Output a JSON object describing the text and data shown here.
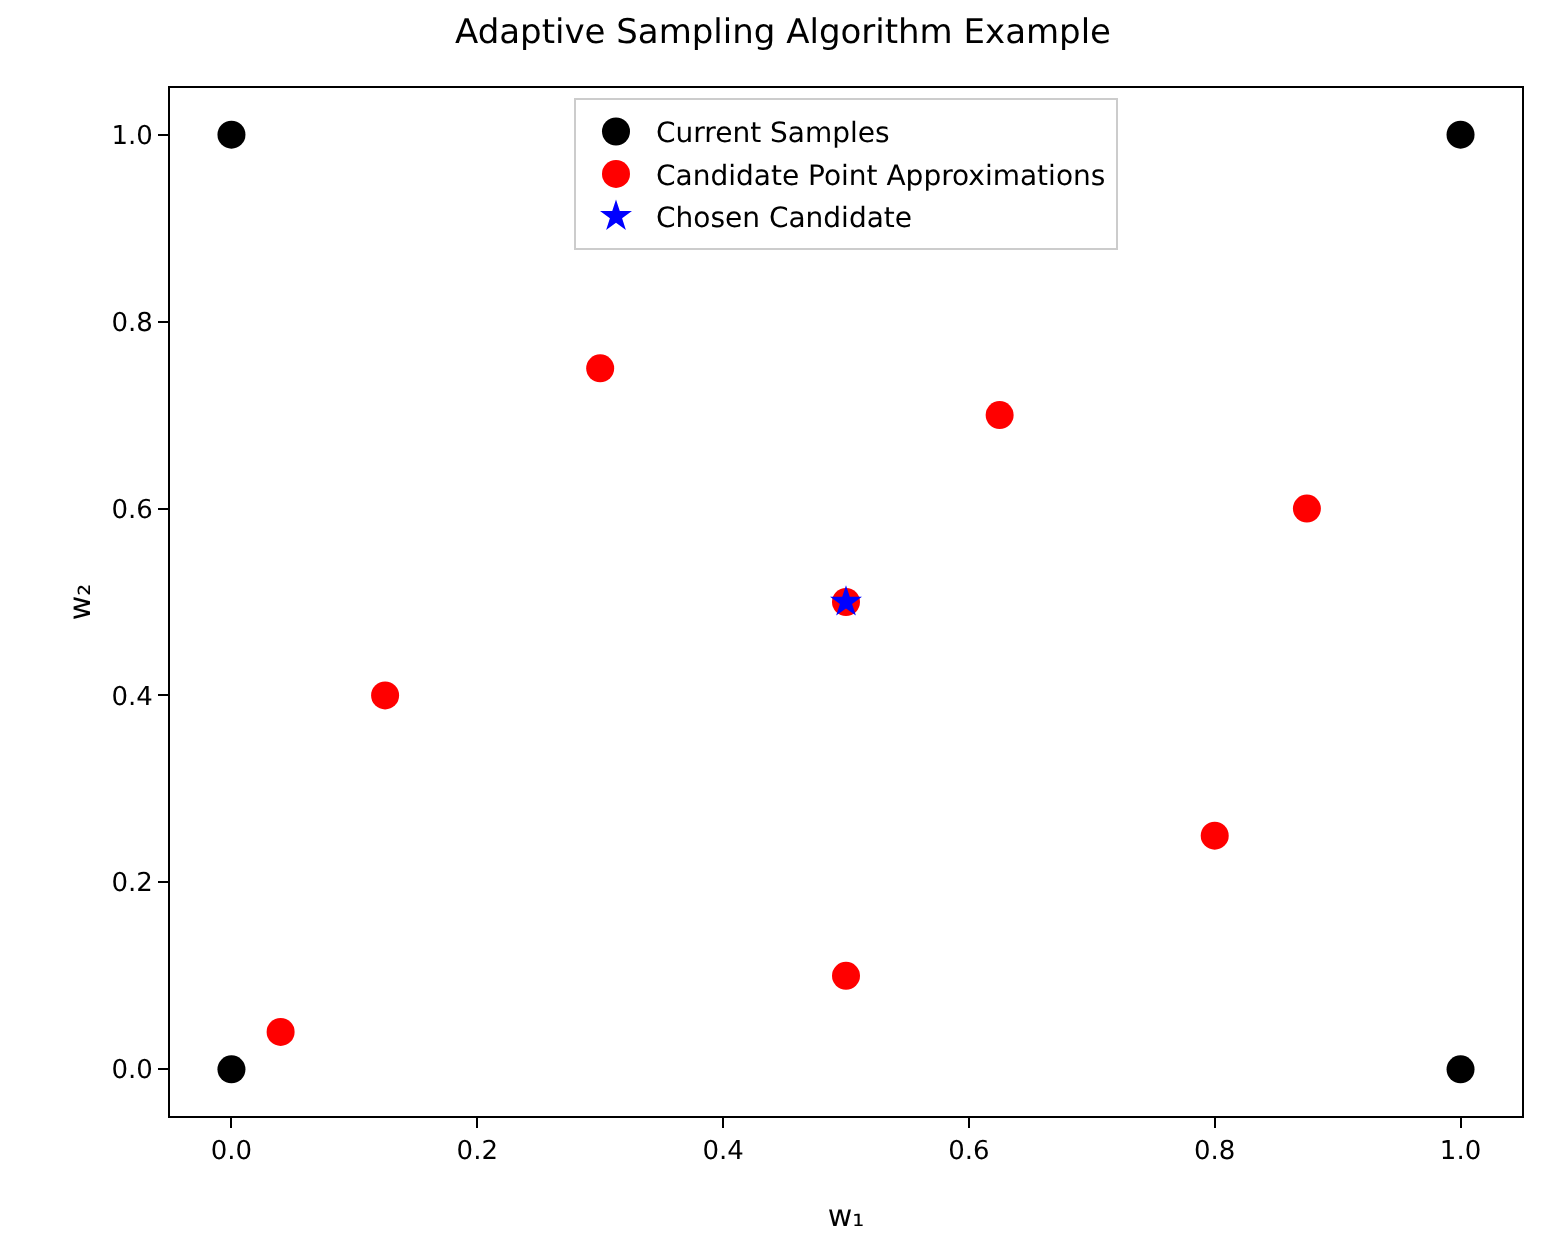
{
  "chart_data": {
    "type": "scatter",
    "title": "Adaptive Sampling Algorithm Example",
    "xlabel": "w₁",
    "ylabel": "w₂",
    "xlim": [
      -0.05,
      1.05
    ],
    "ylim": [
      -0.05,
      1.05
    ],
    "xticks": [
      {
        "value": 0,
        "label": "0.0"
      },
      0.2,
      0.4,
      0.6,
      0.8,
      {
        "value": 1,
        "label": "1.0"
      }
    ],
    "yticks": [
      {
        "value": 0,
        "label": "0.0"
      },
      0.2,
      0.4,
      0.6,
      0.8,
      {
        "value": 1,
        "label": "1.0"
      }
    ],
    "grid": false,
    "legend": "top",
    "marker": "circle",
    "series": [
      {
        "name": "Current Samples",
        "color": "#000000",
        "x": [
          0,
          0,
          1,
          1
        ],
        "values": [
          0,
          1,
          0,
          1
        ]
      },
      {
        "name": "Candidate Point Approximations",
        "color": "#ff0000",
        "x": [
          0.04,
          0.125,
          0.3,
          0.5,
          0.5,
          0.625,
          0.8,
          0.875
        ],
        "values": [
          0.04,
          0.4,
          0.75,
          0.1,
          0.5,
          0.7,
          0.25,
          0.6
        ]
      },
      {
        "name": "Chosen Candidate",
        "color": "#0000ff",
        "marker": "star",
        "x": [
          0.5
        ],
        "values": [
          0.5
        ]
      }
    ]
  }
}
